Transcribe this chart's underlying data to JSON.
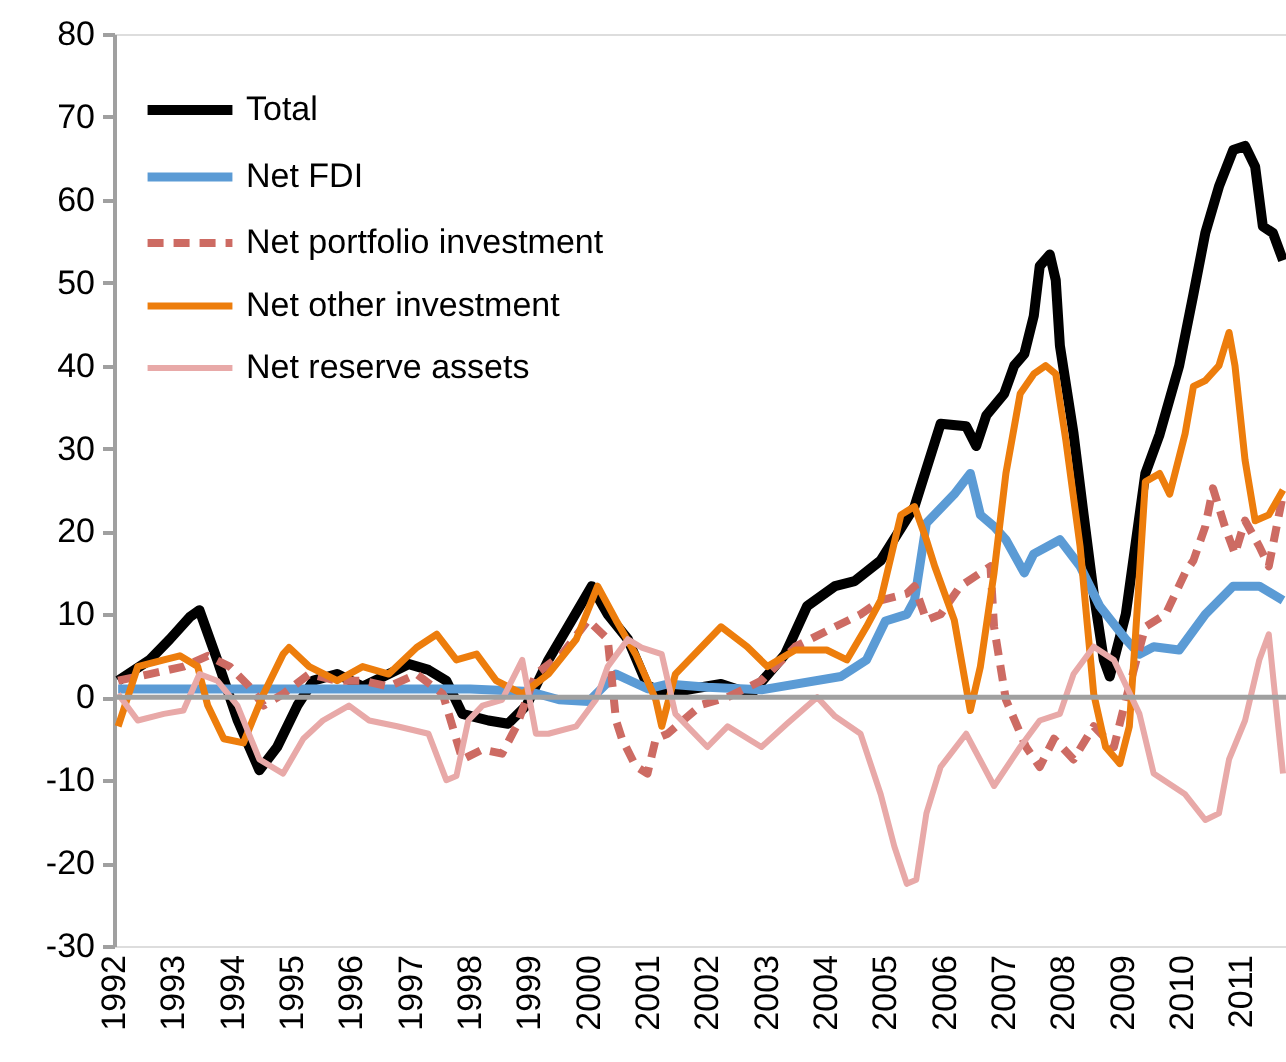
{
  "chart_data": {
    "type": "line",
    "xlim": [
      1992,
      2011.75
    ],
    "xticks": [
      1992,
      1993,
      1994,
      1995,
      1996,
      1997,
      1998,
      1999,
      2000,
      2001,
      2002,
      2003,
      2004,
      2005,
      2006,
      2007,
      2008,
      2009,
      2010,
      2011
    ],
    "ylim": [
      -30,
      80
    ],
    "yticks": [
      -30,
      -20,
      -10,
      0,
      10,
      20,
      30,
      40,
      50,
      60,
      70,
      80
    ],
    "grid": false,
    "legend": "top left",
    "ref_lines": [
      {
        "axis": "y",
        "value": 0,
        "label": null,
        "color": "#a0a0a0"
      }
    ],
    "series": [
      {
        "name": "Total",
        "color": "#000000",
        "line_style": "solid",
        "x": [
          1992.07,
          1992.6,
          1992.94,
          1993.28,
          1993.44,
          1993.74,
          1994.08,
          1994.45,
          1994.75,
          1995.09,
          1995.36,
          1995.76,
          1996.19,
          1996.63,
          1996.97,
          1997.3,
          1997.6,
          1997.87,
          1998.31,
          1998.64,
          1998.95,
          1999.32,
          1999.65,
          2000.05,
          2000.32,
          2000.66,
          2000.99,
          2001.33,
          2001.73,
          2002.23,
          2002.74,
          2003.31,
          2003.68,
          2004.15,
          2004.48,
          2004.92,
          2005.49,
          2005.93,
          2006.36,
          2006.53,
          2006.7,
          2007.0,
          2007.17,
          2007.34,
          2007.5,
          2007.6,
          2007.77,
          2007.87,
          2007.94,
          2008.17,
          2008.34,
          2008.51,
          2008.68,
          2008.78,
          2009.05,
          2009.38,
          2009.62,
          2009.95,
          2010.19,
          2010.39,
          2010.62,
          2010.86,
          2011.06,
          2011.23,
          2011.36,
          2011.53,
          2011.7
        ],
        "values": [
          2,
          4.5,
          7,
          9.7,
          10.5,
          4.5,
          -2.7,
          -8.8,
          -6,
          -1,
          2,
          2.8,
          1.3,
          2.8,
          4,
          3.3,
          2,
          -2,
          -2.8,
          -3.2,
          -1,
          4.5,
          8.5,
          13.4,
          10,
          7,
          1.4,
          0.4,
          1,
          1.6,
          0.4,
          5.2,
          11,
          13.4,
          14,
          16.5,
          23,
          33,
          32.7,
          30.3,
          34,
          36.6,
          40,
          41.4,
          46,
          52,
          53.4,
          50.3,
          42.4,
          31.8,
          22,
          12.5,
          4.5,
          2.5,
          10,
          27,
          31.7,
          40,
          48.6,
          56,
          61.6,
          66,
          66.5,
          64,
          56.8,
          56,
          52.7
        ]
      },
      {
        "name": "Net FDI",
        "color": "#5b9bd5",
        "line_style": "solid",
        "x": [
          1992.07,
          1993.0,
          1994.0,
          1995.0,
          1996.0,
          1997.0,
          1998.0,
          1999.0,
          1999.5,
          2000.0,
          2000.46,
          2001.0,
          2001.33,
          2002.0,
          2002.91,
          2004.25,
          2004.68,
          2005.0,
          2005.36,
          2005.49,
          2005.69,
          2006.16,
          2006.43,
          2006.6,
          2006.83,
          2007.03,
          2007.34,
          2007.5,
          2007.94,
          2008.28,
          2008.61,
          2009.05,
          2009.28,
          2009.52,
          2009.95,
          2010.39,
          2010.86,
          2011.3,
          2011.7
        ],
        "values": [
          1,
          1,
          1,
          1,
          1,
          1,
          1,
          0.7,
          -0.3,
          -0.5,
          2.8,
          1,
          1.6,
          1.2,
          0.9,
          2.5,
          4.5,
          9.2,
          10,
          11.7,
          21,
          24.5,
          27,
          22,
          20.6,
          19,
          15,
          17.3,
          19,
          15.8,
          11,
          7,
          5.2,
          6.1,
          5.7,
          10,
          13.4,
          13.4,
          11.7
        ]
      },
      {
        "name": "Net portfolio investment",
        "color": "#cd6b63",
        "line_style": "dashed",
        "x": [
          1992.07,
          1992.6,
          1993.17,
          1993.58,
          1993.95,
          1994.28,
          1994.52,
          1994.85,
          1995.29,
          1995.76,
          1996.19,
          1996.63,
          1997.1,
          1997.54,
          1997.87,
          1998.21,
          1998.54,
          1998.78,
          1999.11,
          1999.55,
          1999.99,
          2000.32,
          2000.46,
          2000.56,
          2000.79,
          2000.99,
          2001.13,
          2001.33,
          2001.9,
          2002.34,
          2002.91,
          2003.48,
          2004.15,
          2004.58,
          2004.92,
          2005.36,
          2005.49,
          2005.69,
          2005.93,
          2006.26,
          2006.6,
          2006.77,
          2006.83,
          2007.03,
          2007.37,
          2007.6,
          2007.84,
          2008.17,
          2008.51,
          2008.85,
          2009.05,
          2009.38,
          2009.72,
          2010.05,
          2010.19,
          2010.39,
          2010.52,
          2010.72,
          2010.89,
          2011.06,
          2011.3,
          2011.46,
          2011.7
        ],
        "values": [
          2,
          2.8,
          3.7,
          5,
          3.7,
          1.3,
          -1,
          0.4,
          2.8,
          2,
          2,
          1.3,
          2.8,
          0.4,
          -7.5,
          -6.3,
          -6.8,
          -3.5,
          2.8,
          5.2,
          9.3,
          7,
          -2.8,
          -5,
          -8.3,
          -9.2,
          -5,
          -4.4,
          -0.9,
          0,
          2,
          6.1,
          8.5,
          10,
          11.7,
          12.5,
          13.4,
          9.3,
          10,
          13.4,
          15,
          15.8,
          8.5,
          -0.3,
          -6,
          -8.4,
          -5,
          -7.5,
          -3.5,
          -6,
          -0.3,
          8.5,
          10,
          15,
          16.5,
          20.6,
          25.2,
          20.6,
          17.3,
          21.3,
          18.2,
          15.8,
          24.5
        ]
      },
      {
        "name": "Net other investment",
        "color": "#ed7d0c",
        "line_style": "solid",
        "x": [
          1992.07,
          1992.4,
          1992.84,
          1993.11,
          1993.41,
          1993.58,
          1993.85,
          1994.18,
          1994.52,
          1994.85,
          1994.95,
          1995.29,
          1995.76,
          1996.19,
          1996.63,
          1997.1,
          1997.44,
          1997.77,
          1998.11,
          1998.44,
          1998.88,
          1999.32,
          1999.79,
          2000.15,
          2000.46,
          2000.79,
          2001.13,
          2001.23,
          2001.46,
          2002.23,
          2002.67,
          2003.01,
          2003.48,
          2004.01,
          2004.35,
          2004.68,
          2004.92,
          2005.26,
          2005.49,
          2005.69,
          2005.83,
          2006.16,
          2006.43,
          2006.6,
          2006.83,
          2007.03,
          2007.27,
          2007.5,
          2007.7,
          2007.87,
          2008.04,
          2008.28,
          2008.51,
          2008.71,
          2008.95,
          2009.11,
          2009.21,
          2009.38,
          2009.62,
          2009.79,
          2010.05,
          2010.19,
          2010.39,
          2010.62,
          2010.79,
          2010.89,
          2011.06,
          2011.23,
          2011.46,
          2011.7
        ],
        "values": [
          -3.5,
          3.7,
          4.5,
          5,
          3.7,
          -1,
          -5,
          -5.5,
          0.4,
          5.2,
          6,
          3.7,
          2,
          3.7,
          2.8,
          6,
          7.6,
          4.5,
          5.2,
          2,
          0.4,
          2.8,
          7,
          13.4,
          9.3,
          5.2,
          -0.3,
          -3.5,
          2.8,
          8.5,
          6.1,
          3.7,
          5.7,
          5.7,
          4.5,
          8.5,
          11.7,
          22,
          23,
          19,
          15.8,
          9.3,
          -1.6,
          3.7,
          15,
          27,
          36.6,
          39,
          40,
          39,
          31,
          18.2,
          0.4,
          -6,
          -8,
          -3.5,
          7,
          26,
          27,
          24.5,
          31.8,
          37.5,
          38.2,
          40,
          44,
          40,
          28.6,
          21.3,
          22,
          25
        ]
      },
      {
        "name": "Net reserve assets",
        "color": "#e8a9a8",
        "line_style": "solid",
        "x": [
          1992.07,
          1992.4,
          1992.84,
          1993.17,
          1993.44,
          1993.74,
          1994.08,
          1994.45,
          1994.85,
          1995.19,
          1995.52,
          1995.96,
          1996.3,
          1996.77,
          1997.3,
          1997.6,
          1997.77,
          1997.97,
          1998.21,
          1998.54,
          1998.88,
          1999.11,
          1999.32,
          1999.79,
          2000.12,
          2000.32,
          2000.66,
          2000.89,
          2001.23,
          2001.46,
          2002.0,
          2002.34,
          2002.91,
          2003.34,
          2003.85,
          2004.15,
          2004.58,
          2004.92,
          2005.15,
          2005.36,
          2005.52,
          2005.69,
          2005.93,
          2006.36,
          2006.83,
          2007.27,
          2007.6,
          2007.94,
          2008.17,
          2008.51,
          2008.85,
          2009.28,
          2009.52,
          2010.05,
          2010.39,
          2010.62,
          2010.79,
          2011.06,
          2011.3,
          2011.46,
          2011.7
        ],
        "values": [
          0.4,
          -2.8,
          -2,
          -1.6,
          2.8,
          2,
          -1,
          -7.5,
          -9.2,
          -5,
          -2.8,
          -1,
          -2.8,
          -3.5,
          -4.4,
          -10,
          -9.5,
          -2.8,
          -1,
          -0.3,
          4.5,
          -4.4,
          -4.4,
          -3.5,
          -0.3,
          3.7,
          7,
          6,
          5.2,
          -2,
          -6,
          -3.5,
          -6,
          -3.2,
          0,
          -2.3,
          -4.4,
          -11.7,
          -18,
          -22.5,
          -22,
          -14,
          -8.4,
          -4.4,
          -10.7,
          -6,
          -2.8,
          -2,
          2.8,
          6.1,
          4.5,
          -2,
          -9.2,
          -11.7,
          -14.8,
          -14,
          -7.5,
          -2.8,
          4.5,
          7.6,
          -9.2
        ]
      }
    ]
  }
}
